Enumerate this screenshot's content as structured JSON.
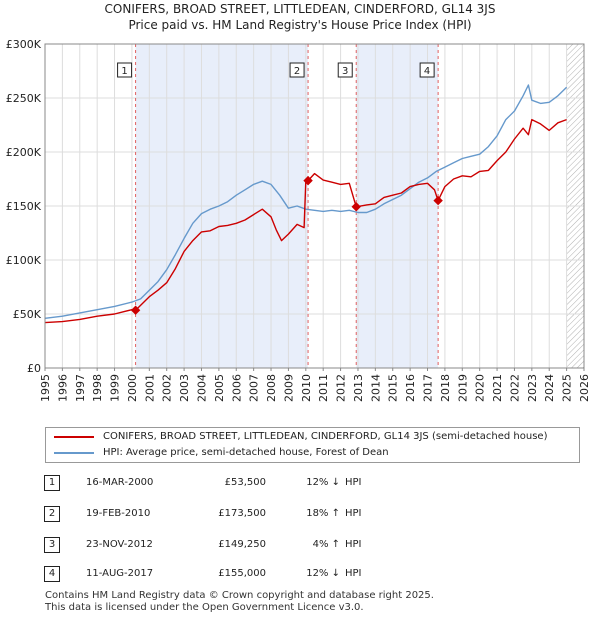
{
  "title_line1": "CONIFERS, BROAD STREET, LITTLEDEAN, CINDERFORD, GL14 3JS",
  "title_line2": "Price paid vs. HM Land Registry's House Price Index (HPI)",
  "chart_data": {
    "type": "line",
    "title": "Price paid vs. HM Land Registry's House Price Index (HPI)",
    "xlabel": "",
    "ylabel": "",
    "xlim": [
      1995,
      2026
    ],
    "ylim": [
      0,
      300000
    ],
    "y_ticks": [
      0,
      50000,
      100000,
      150000,
      200000,
      250000,
      300000
    ],
    "y_tick_labels": [
      "£0",
      "£50K",
      "£100K",
      "£150K",
      "£200K",
      "£250K",
      "£300K"
    ],
    "x_ticks": [
      1995,
      1996,
      1997,
      1998,
      1999,
      2000,
      2001,
      2002,
      2003,
      2004,
      2005,
      2006,
      2007,
      2008,
      2009,
      2010,
      2011,
      2012,
      2013,
      2014,
      2015,
      2016,
      2017,
      2018,
      2019,
      2020,
      2021,
      2022,
      2023,
      2024,
      2025,
      2026
    ],
    "grid": true,
    "shaded_regions": [
      [
        2000.21,
        2010.13
      ],
      [
        2012.9,
        2017.61
      ]
    ],
    "hatched_region": [
      2025.0,
      2026.0
    ],
    "series": [
      {
        "name": "CONIFERS, BROAD STREET, LITTLEDEAN, CINDERFORD, GL14 3JS (semi-detached house)",
        "color": "#cc0000",
        "x": [
          1995.0,
          1996.0,
          1997.0,
          1998.0,
          1999.0,
          1999.5,
          2000.0,
          2000.21,
          2001.0,
          2001.5,
          2002.0,
          2002.5,
          2003.0,
          2003.5,
          2004.0,
          2004.5,
          2005.0,
          2005.5,
          2006.0,
          2006.5,
          2007.0,
          2007.5,
          2008.0,
          2008.3,
          2008.6,
          2009.0,
          2009.5,
          2009.9,
          2010.0,
          2010.13,
          2010.5,
          2011.0,
          2011.5,
          2012.0,
          2012.5,
          2012.9,
          2013.5,
          2014.0,
          2014.5,
          2015.0,
          2015.5,
          2016.0,
          2016.5,
          2017.0,
          2017.4,
          2017.61,
          2018.0,
          2018.5,
          2019.0,
          2019.5,
          2020.0,
          2020.5,
          2021.0,
          2021.5,
          2022.0,
          2022.5,
          2022.8,
          2023.0,
          2023.5,
          2024.0,
          2024.5,
          2025.0
        ],
        "y": [
          42000,
          43000,
          45000,
          48000,
          50000,
          52000,
          54000,
          53500,
          66000,
          72000,
          79000,
          92000,
          108000,
          118000,
          126000,
          127000,
          131000,
          132000,
          134000,
          137000,
          142000,
          147000,
          140000,
          128000,
          118000,
          124000,
          133000,
          130000,
          173000,
          173500,
          180000,
          174000,
          172000,
          170000,
          171000,
          149250,
          151000,
          152000,
          158000,
          160000,
          162000,
          168000,
          170000,
          171000,
          165000,
          155000,
          168000,
          175000,
          178000,
          177000,
          182000,
          183000,
          192000,
          200000,
          212000,
          222000,
          216000,
          230000,
          226000,
          220000,
          227000,
          230000
        ]
      },
      {
        "name": "HPI: Average price, semi-detached house, Forest of Dean",
        "color": "#6699cc",
        "x": [
          1995.0,
          1996.0,
          1997.0,
          1998.0,
          1999.0,
          2000.0,
          2000.5,
          2001.0,
          2001.5,
          2002.0,
          2002.5,
          2003.0,
          2003.5,
          2004.0,
          2004.5,
          2005.0,
          2005.5,
          2006.0,
          2006.5,
          2007.0,
          2007.5,
          2008.0,
          2008.5,
          2009.0,
          2009.5,
          2010.0,
          2010.5,
          2011.0,
          2011.5,
          2012.0,
          2012.5,
          2013.0,
          2013.5,
          2014.0,
          2014.5,
          2015.0,
          2015.5,
          2016.0,
          2016.5,
          2017.0,
          2017.5,
          2018.0,
          2018.5,
          2019.0,
          2019.5,
          2020.0,
          2020.5,
          2021.0,
          2021.5,
          2022.0,
          2022.5,
          2022.8,
          2023.0,
          2023.5,
          2024.0,
          2024.5,
          2025.0
        ],
        "y": [
          46000,
          48000,
          51000,
          54000,
          57000,
          61000,
          64000,
          72000,
          80000,
          91000,
          105000,
          120000,
          134000,
          143000,
          147000,
          150000,
          154000,
          160000,
          165000,
          170000,
          173000,
          170000,
          160000,
          148000,
          150000,
          147000,
          146000,
          145000,
          146000,
          145000,
          146000,
          144000,
          144000,
          147000,
          152000,
          156000,
          160000,
          166000,
          172000,
          176000,
          182000,
          186000,
          190000,
          194000,
          196000,
          198000,
          205000,
          215000,
          230000,
          238000,
          252000,
          262000,
          248000,
          245000,
          246000,
          252000,
          260000
        ]
      }
    ],
    "sale_markers": [
      {
        "label": "1",
        "x": 2000.21,
        "y": 53500
      },
      {
        "label": "2",
        "x": 2010.13,
        "y": 173500
      },
      {
        "label": "3",
        "x": 2012.9,
        "y": 149250
      },
      {
        "label": "4",
        "x": 2017.61,
        "y": 155000
      }
    ]
  },
  "legend": [
    {
      "label": "CONIFERS, BROAD STREET, LITTLEDEAN, CINDERFORD, GL14 3JS (semi-detached house)",
      "color": "#cc0000"
    },
    {
      "label": "HPI: Average price, semi-detached house, Forest of Dean",
      "color": "#6699cc"
    }
  ],
  "transactions": [
    {
      "num": "1",
      "date": "16-MAR-2000",
      "price": "£53,500",
      "pct": "12% ↓",
      "dir": "HPI"
    },
    {
      "num": "2",
      "date": "19-FEB-2010",
      "price": "£173,500",
      "pct": "18% ↑",
      "dir": "HPI"
    },
    {
      "num": "3",
      "date": "23-NOV-2012",
      "price": "£149,250",
      "pct": "4% ↑",
      "dir": "HPI"
    },
    {
      "num": "4",
      "date": "11-AUG-2017",
      "price": "£155,000",
      "pct": "12% ↓",
      "dir": "HPI"
    }
  ],
  "footer_line1": "Contains HM Land Registry data © Crown copyright and database right 2025.",
  "footer_line2": "This data is licensed under the Open Government Licence v3.0."
}
